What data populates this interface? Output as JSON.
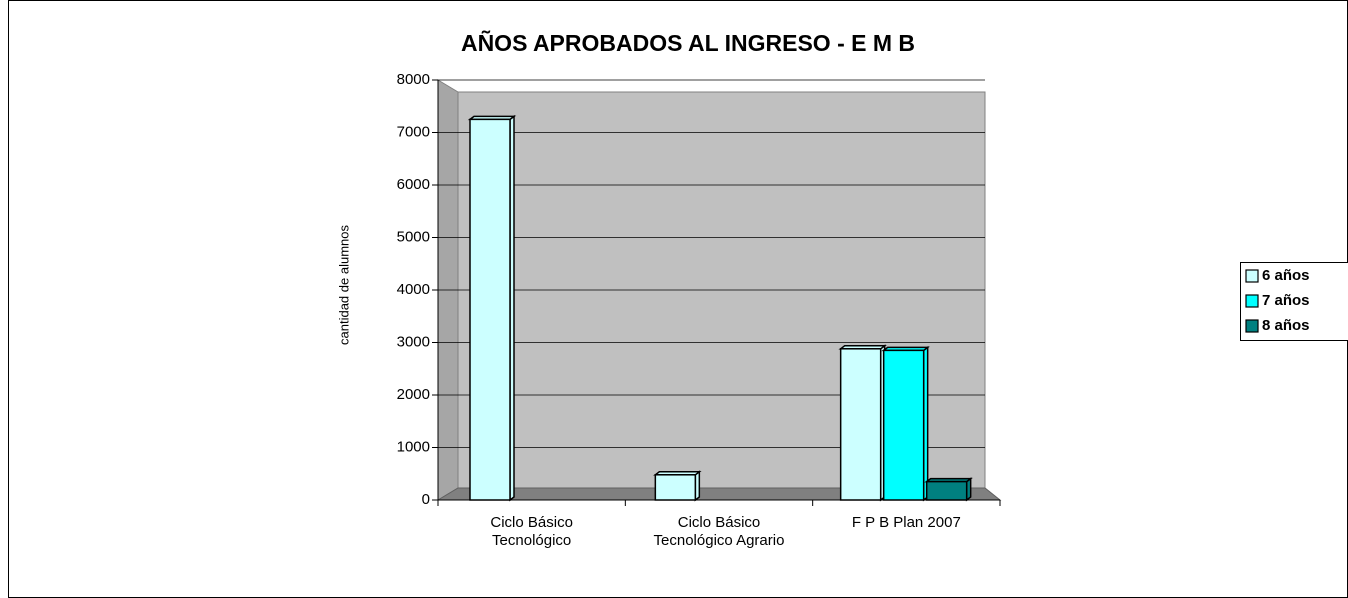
{
  "chart_data": {
    "type": "bar3d",
    "title": "AÑOS APROBADOS AL INGRESO - E M B",
    "y_label": "cantidad de alumnos",
    "categories": [
      "Ciclo Básico Tecnológico",
      "Ciclo Básico Tecnológico Agrario",
      "F P B Plan 2007"
    ],
    "series": [
      {
        "name": "6 años",
        "color": "#ccffff",
        "values": [
          7250,
          480,
          2880
        ]
      },
      {
        "name": "7 años",
        "color": "#00ffff",
        "values": [
          null,
          null,
          2850
        ]
      },
      {
        "name": "8 años",
        "color": "#008080",
        "values": [
          null,
          null,
          350
        ]
      }
    ],
    "ylim": [
      0,
      8000
    ],
    "yticks": [
      0,
      1000,
      2000,
      3000,
      4000,
      5000,
      6000,
      7000,
      8000
    ],
    "grid": true,
    "legend": "right"
  }
}
